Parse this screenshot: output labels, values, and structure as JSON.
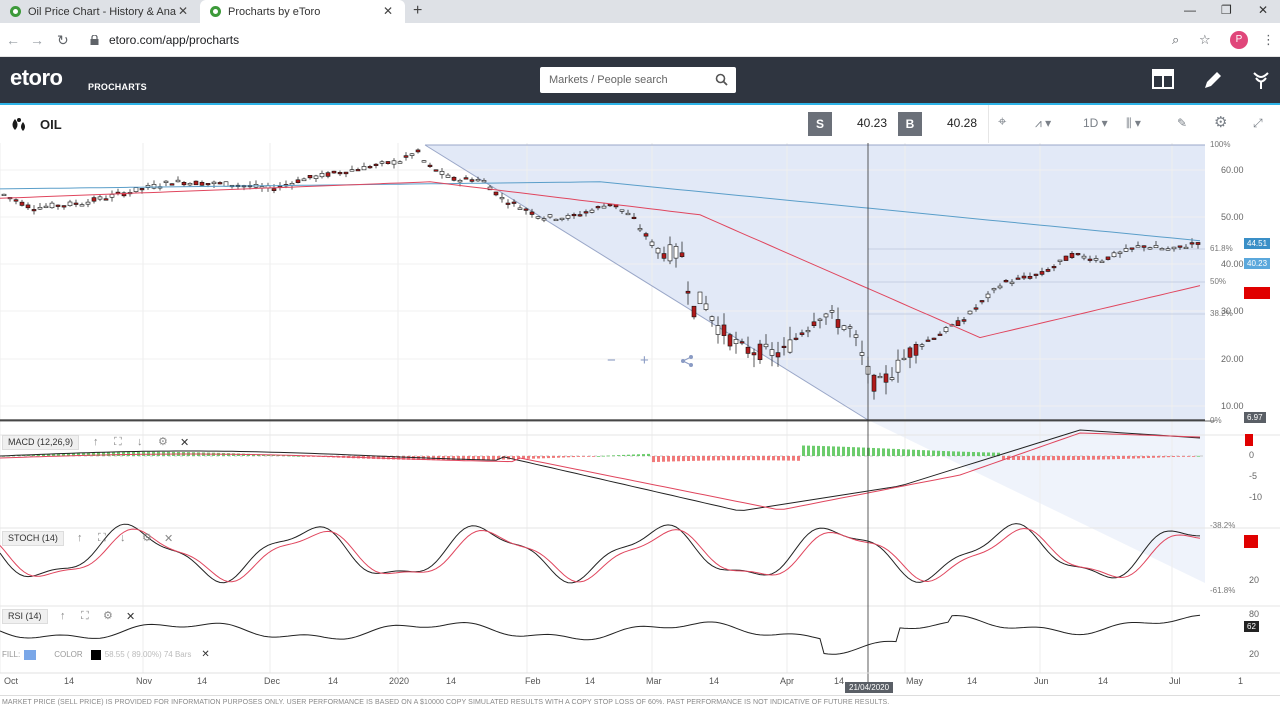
{
  "browser": {
    "tabs": [
      {
        "label": "Oil Price Chart - History & Analy",
        "active": false
      },
      {
        "label": "Procharts by eToro",
        "active": true
      }
    ],
    "url": "etoro.com/app/procharts",
    "profile_initial": "P"
  },
  "header": {
    "logo": "etoro",
    "logo_sub": "PROCHARTS",
    "search_placeholder": "Markets / People search"
  },
  "toolbar": {
    "instrument": "OIL",
    "sell_label": "S",
    "sell_price": "40.23",
    "buy_label": "B",
    "buy_price": "40.28",
    "timeframe": "1D"
  },
  "chart": {
    "y_labels": [
      "60.00",
      "50.00",
      "40.00",
      "30.00",
      "20.00",
      "10.00"
    ],
    "price_tags": {
      "blue_ma": "44.51",
      "current": "40.23",
      "low": "6.97"
    },
    "fib_levels": [
      "100%",
      "61.8%",
      "50%",
      "38.2%",
      "0%"
    ],
    "x_labels": [
      "Oct",
      "14",
      "Nov",
      "14",
      "Dec",
      "14",
      "2020",
      "14",
      "Feb",
      "14",
      "Mar",
      "14",
      "Apr",
      "14",
      "May",
      "14",
      "Jun",
      "14",
      "Jul",
      "1"
    ],
    "crosshair_date": "21/04/2020",
    "macd": {
      "label": "MACD (12,26,9)",
      "axis": [
        "0",
        "-5",
        "-10"
      ]
    },
    "stoch": {
      "label": "STOCH (14)",
      "axis": [
        "-38.2%",
        "20",
        "-61.8%"
      ]
    },
    "rsi": {
      "label": "RSI (14)",
      "axis": [
        "80",
        "20"
      ],
      "value": "62"
    },
    "fill_row": {
      "fill": "FILL:",
      "color": "COLOR",
      "info": "58.55 ( 89.00%) 74 Bars"
    }
  },
  "colors": {
    "header_bg": "#2f3540",
    "accent": "#2db3e7",
    "bull_candle": "#ffffff",
    "bear_candle": "#b01b1b",
    "ma_red": "#e0465e",
    "ma_blue": "#5a9ec9",
    "macd_pos": "#5cc65c",
    "macd_neg": "#ef6b6b",
    "fib_zone": "#dfe6f7"
  },
  "footer": {
    "disclaimer": "MARKET PRICE (SELL PRICE) IS PROVIDED FOR INFORMATION PURPOSES ONLY. USER PERFORMANCE IS BASED ON A $10000 COPY SIMULATED RESULTS WITH A COPY STOP LOSS OF 60%. PAST PERFORMANCE IS NOT INDICATIVE OF FUTURE RESULTS."
  }
}
